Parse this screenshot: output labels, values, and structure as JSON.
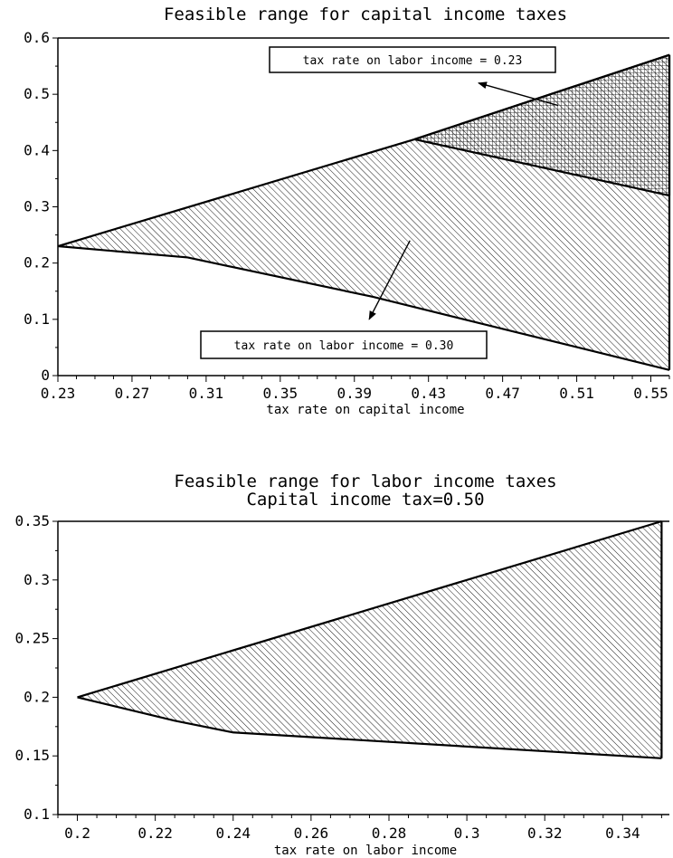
{
  "chart_data": [
    {
      "type": "area",
      "title": "Feasible range for capital income taxes",
      "xlabel": "tax rate on capital income",
      "ylabel": "",
      "xlim": [
        0.23,
        0.56
      ],
      "ylim": [
        0,
        0.6
      ],
      "xticks": [
        "0.23",
        "0.27",
        "0.31",
        "0.35",
        "0.39",
        "0.43",
        "0.47",
        "0.51",
        "0.55"
      ],
      "xtick_values": [
        0.23,
        0.27,
        0.31,
        0.35,
        0.39,
        0.43,
        0.47,
        0.51,
        0.55
      ],
      "yticks": [
        "0",
        "0.1",
        "0.2",
        "0.3",
        "0.4",
        "0.5",
        "0.6"
      ],
      "ytick_values": [
        0,
        0.1,
        0.2,
        0.3,
        0.4,
        0.5,
        0.6
      ],
      "series": [
        {
          "name": "tax rate on labor income = 0.30",
          "pattern": "diagonal hatch",
          "upper": [
            [
              0.23,
              0.23
            ],
            [
              0.4225,
              0.42
            ],
            [
              0.56,
              0.57
            ]
          ],
          "lower": [
            [
              0.23,
              0.23
            ],
            [
              0.3,
              0.21
            ],
            [
              0.4,
              0.14
            ],
            [
              0.56,
              0.01
            ]
          ]
        },
        {
          "name": "tax rate on labor income = 0.23",
          "pattern": "crosshatch",
          "upper": [
            [
              0.4225,
              0.42
            ],
            [
              0.56,
              0.57
            ]
          ],
          "lower": [
            [
              0.4225,
              0.42
            ],
            [
              0.56,
              0.32
            ]
          ]
        }
      ],
      "annotations": [
        {
          "text": "tax rate on labor income = 0.23",
          "arrow_from": [
            0.5,
            0.48
          ],
          "arrow_to": [
            0.457,
            0.52
          ]
        },
        {
          "text": "tax rate on labor income = 0.30",
          "arrow_from": [
            0.42,
            0.24
          ],
          "arrow_to": [
            0.398,
            0.1
          ]
        }
      ]
    },
    {
      "type": "area",
      "title": "Feasible range for labor income taxes",
      "subtitle": "Capital income tax=0.50",
      "xlabel": "tax rate on labor income",
      "ylabel": "",
      "xlim": [
        0.195,
        0.352
      ],
      "ylim": [
        0.1,
        0.35
      ],
      "xticks": [
        "0.2",
        "0.22",
        "0.24",
        "0.26",
        "0.28",
        "0.3",
        "0.32",
        "0.34"
      ],
      "xtick_values": [
        0.2,
        0.22,
        0.24,
        0.26,
        0.28,
        0.3,
        0.32,
        0.34
      ],
      "yticks": [
        "0.1",
        "0.15",
        "0.2",
        "0.25",
        "0.3",
        "0.35"
      ],
      "ytick_values": [
        0.1,
        0.15,
        0.2,
        0.25,
        0.3,
        0.35
      ],
      "series": [
        {
          "pattern": "diagonal hatch",
          "upper": [
            [
              0.2,
              0.2
            ],
            [
              0.35,
              0.35
            ]
          ],
          "lower": [
            [
              0.2,
              0.2
            ],
            [
              0.225,
              0.18
            ],
            [
              0.24,
              0.17
            ],
            [
              0.35,
              0.148
            ]
          ]
        }
      ]
    }
  ]
}
